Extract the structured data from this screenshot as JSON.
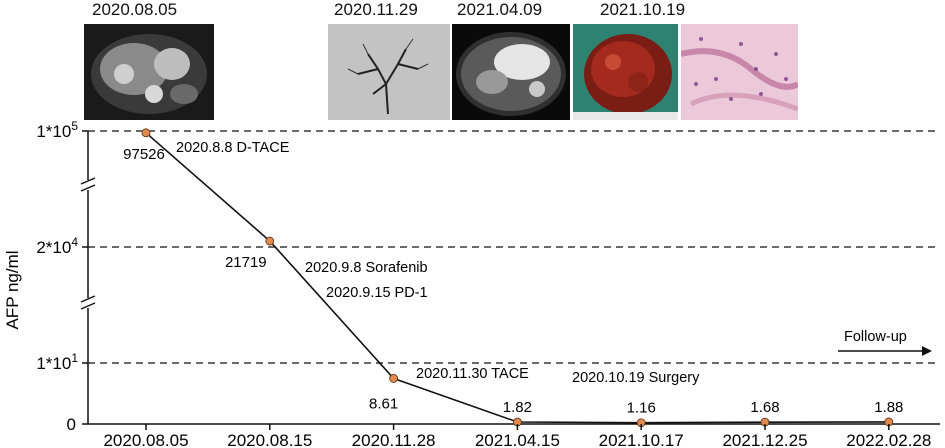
{
  "image_dates": [
    "2020.08.05",
    "2020.11.29",
    "2021.04.09",
    "2021.10.19"
  ],
  "chart_data": {
    "type": "line",
    "title": "",
    "ylabel": "AFP ng/ml",
    "xlabel": "",
    "categories": [
      "2020.08.05",
      "2020.08.15",
      "2020.11.28",
      "2021.04.15",
      "2021.10.17",
      "2021.12.25",
      "2022.02.28"
    ],
    "values": [
      97526,
      21719,
      8.61,
      1.82,
      1.16,
      1.68,
      1.88
    ],
    "value_labels": [
      "97526",
      "21719",
      "8.61",
      "1.82",
      "1.16",
      "1.68",
      "1.88"
    ],
    "yticks": [
      {
        "label": "1*10",
        "exp": "5",
        "value": 100000
      },
      {
        "label": "2*10",
        "exp": "4",
        "value": 20000
      },
      {
        "label": "1*10",
        "exp": "1",
        "value": 10
      },
      {
        "label": "0",
        "exp": "",
        "value": 0
      }
    ],
    "broken_axis": true,
    "grid": "dashed at labelled ticks",
    "annotations": [
      {
        "text": "2020.8.8 D-TACE"
      },
      {
        "text": "2020.9.8 Sorafenib"
      },
      {
        "text": "2020.9.15 PD-1"
      },
      {
        "text": "2020.11.30 TACE"
      },
      {
        "text": "2020.10.19 Surgery"
      },
      {
        "text": "Follow-up"
      }
    ],
    "colors": {
      "marker": "#e08a4e",
      "line": "#111111"
    }
  }
}
